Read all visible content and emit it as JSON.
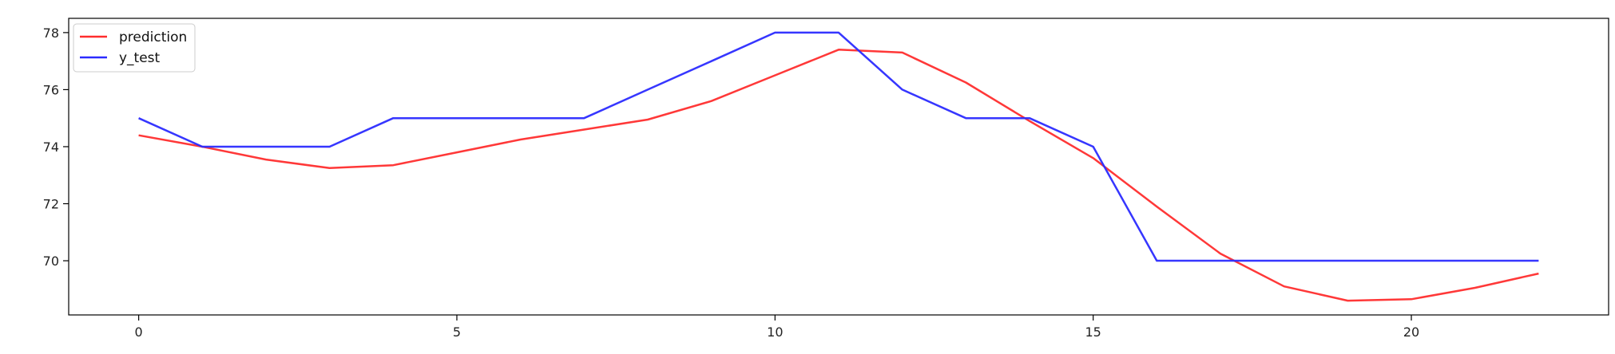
{
  "chart_data": {
    "type": "line",
    "title": "",
    "xlabel": "",
    "ylabel": "",
    "xlim": [
      -1.1,
      23.1
    ],
    "ylim": [
      68.1,
      78.5
    ],
    "x_ticks": [
      0,
      5,
      10,
      15,
      20
    ],
    "y_ticks": [
      70,
      72,
      74,
      76,
      78
    ],
    "grid": false,
    "legend_position": "upper-left",
    "x": [
      0,
      1,
      2,
      3,
      4,
      5,
      6,
      7,
      8,
      9,
      10,
      11,
      12,
      13,
      14,
      15,
      16,
      17,
      18,
      19,
      20,
      21,
      22
    ],
    "series": [
      {
        "name": "prediction",
        "color": "#ff2d2d",
        "values": [
          74.4,
          74.0,
          73.55,
          73.25,
          73.35,
          73.8,
          74.25,
          74.6,
          74.95,
          75.6,
          76.5,
          77.4,
          77.3,
          76.25,
          74.9,
          73.6,
          71.9,
          70.25,
          69.1,
          68.6,
          68.65,
          69.05,
          69.55
        ]
      },
      {
        "name": "y_test",
        "color": "#2b2bff",
        "values": [
          75,
          74,
          74,
          74,
          75,
          75,
          75,
          75,
          76,
          77,
          78,
          78,
          76,
          75,
          75,
          74,
          70,
          70,
          70,
          70,
          70,
          70,
          70
        ]
      }
    ]
  }
}
